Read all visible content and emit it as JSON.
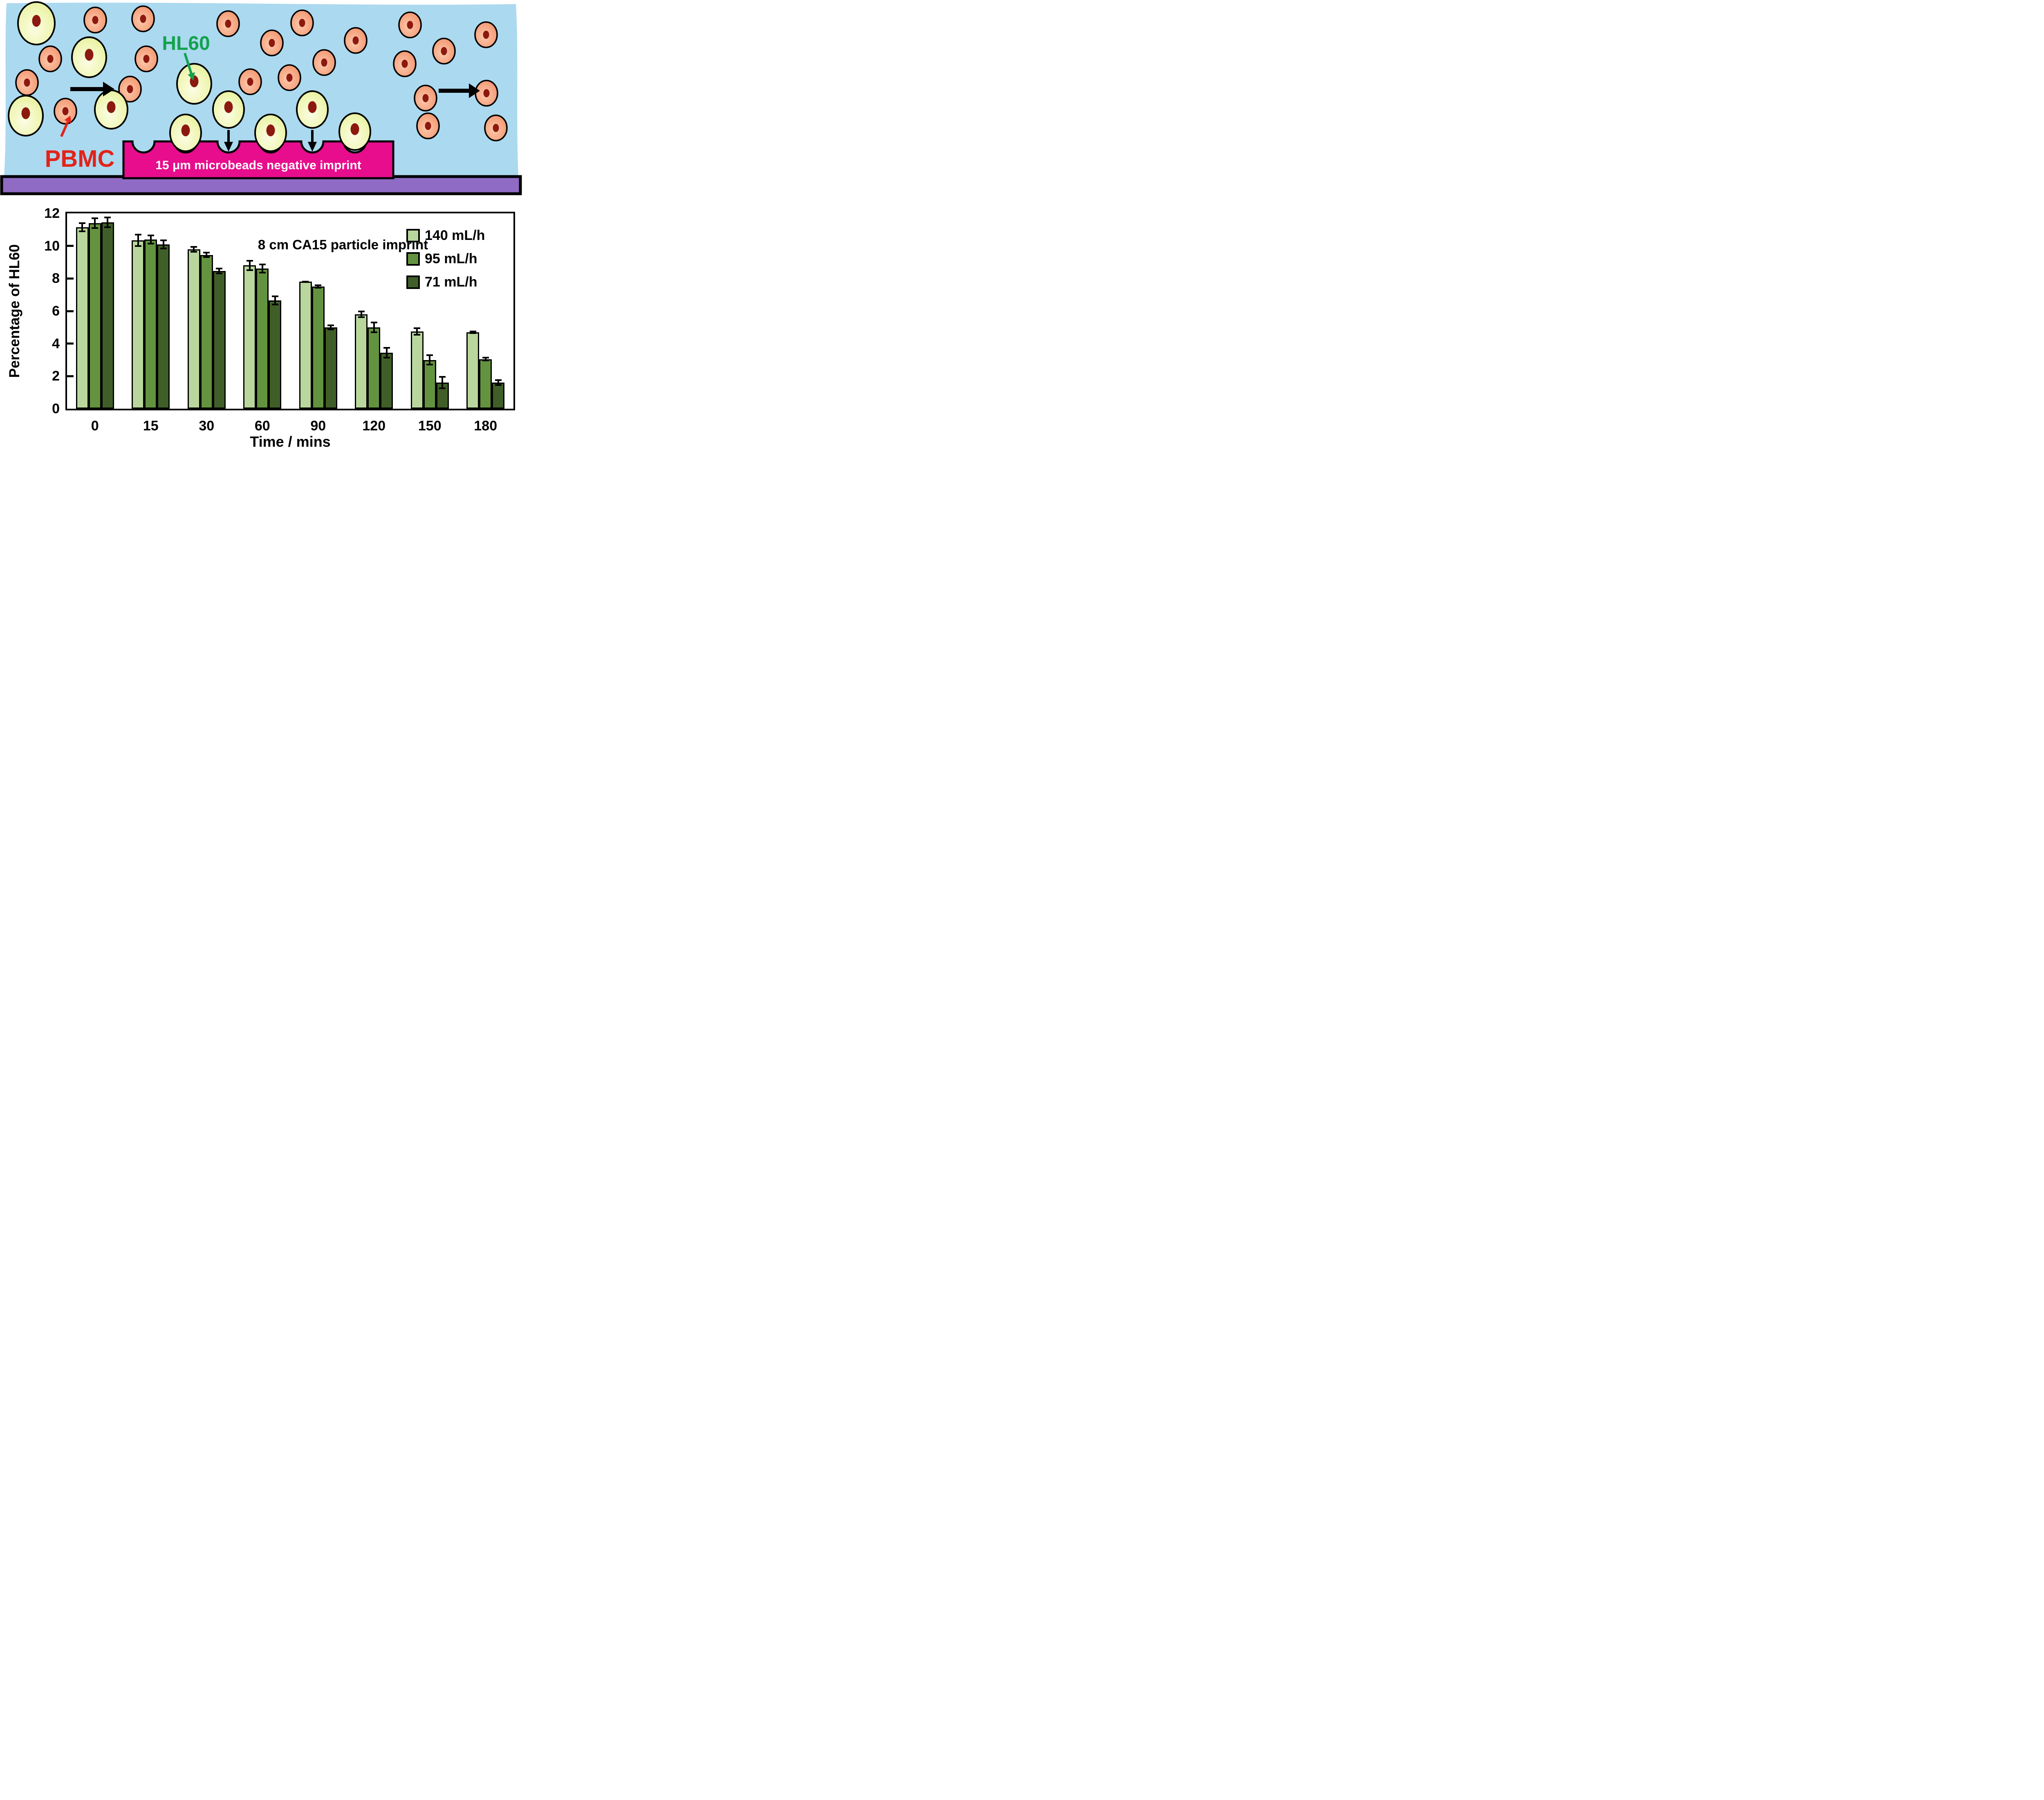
{
  "diagram": {
    "labels": {
      "hl60": "HL60",
      "pbmc": "PBMC",
      "imprint": "15 μm microbeads negative imprint"
    },
    "colors": {
      "fluid_background": "#abd9ef",
      "pbmc_fill": "#f29b74",
      "hl60_fill": "#e7f29c",
      "nucleus": "#8c190f",
      "imprint_fill": "#e70d8c",
      "imprint_text": "#ffffff",
      "substrate_fill": "#8f6bc4",
      "hl60_label_color": "#13a24d",
      "pbmc_label_color": "#e2231a",
      "arrow_color": "#000000"
    }
  },
  "chart_data": {
    "type": "bar",
    "title": "8 cm CA15 particle imprint",
    "xlabel": "Time / mins",
    "ylabel": "Percentage of HL60",
    "categories": [
      "0",
      "15",
      "30",
      "60",
      "90",
      "120",
      "150",
      "180"
    ],
    "series": [
      {
        "name": "140 mL/h",
        "color": "#b9d79d",
        "values": [
          11.15,
          10.35,
          9.8,
          8.8,
          7.8,
          5.8,
          4.75,
          4.7
        ],
        "errors": [
          0.3,
          0.4,
          0.2,
          0.35,
          0.07,
          0.22,
          0.25,
          0.1
        ]
      },
      {
        "name": "95 mL/h",
        "color": "#649340",
        "values": [
          11.4,
          10.4,
          9.45,
          8.6,
          7.5,
          5.0,
          3.0,
          3.05
        ],
        "errors": [
          0.35,
          0.3,
          0.18,
          0.3,
          0.12,
          0.35,
          0.35,
          0.15
        ]
      },
      {
        "name": "71 mL/h",
        "color": "#405f28",
        "values": [
          11.45,
          10.1,
          8.45,
          6.65,
          5.0,
          3.45,
          1.6,
          1.6
        ],
        "errors": [
          0.35,
          0.3,
          0.2,
          0.3,
          0.18,
          0.35,
          0.4,
          0.2
        ]
      }
    ],
    "ylim": [
      0,
      12
    ],
    "yticks": [
      0,
      2,
      4,
      6,
      8,
      10,
      12
    ],
    "grid": false,
    "legend_position": "top-right"
  }
}
